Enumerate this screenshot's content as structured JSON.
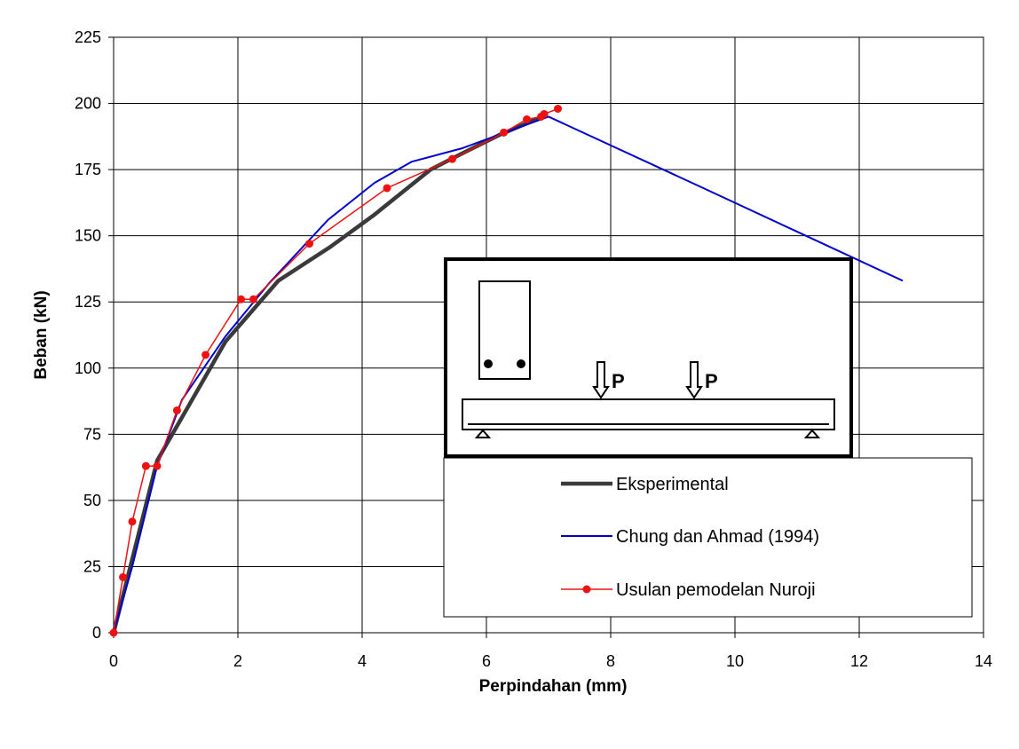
{
  "chart_data": {
    "type": "line",
    "xlabel": "Perpindahan (mm)",
    "ylabel": "Beban (kN)",
    "xlim": [
      0,
      14
    ],
    "ylim": [
      0,
      225
    ],
    "xticks": [
      0,
      2,
      4,
      6,
      8,
      10,
      12,
      14
    ],
    "yticks": [
      0,
      25,
      50,
      75,
      100,
      125,
      150,
      175,
      200,
      225
    ],
    "grid": true,
    "legend_position": "bottom-right",
    "series": [
      {
        "name": "Eksperimental",
        "color": "#3a3a3a",
        "marker": "none",
        "x": [
          0,
          0.7,
          1.8,
          2.65,
          3.5,
          4.2,
          5.1,
          5.6,
          6.2,
          6.9
        ],
        "y": [
          0,
          65,
          110,
          133,
          146,
          158,
          175,
          181,
          188,
          195
        ]
      },
      {
        "name": "Chung dan Ahmad (1994)",
        "color": "#0000cc",
        "marker": "none",
        "x": [
          0,
          0.3,
          0.7,
          1.1,
          1.8,
          2.5,
          3.45,
          4.2,
          4.8,
          5.6,
          6.3,
          7.0,
          9.4,
          12.7
        ],
        "y": [
          0,
          25,
          63,
          88,
          112,
          132,
          156,
          170,
          178,
          183,
          189,
          195,
          169,
          133
        ]
      },
      {
        "name": "Usulan pemodelan Nuroji",
        "color": "#ee1111",
        "marker": "circle",
        "x": [
          0,
          0.15,
          0.3,
          0.52,
          0.7,
          1.02,
          1.48,
          2.05,
          2.25,
          3.15,
          4.4,
          5.45,
          6.28,
          6.65,
          6.88,
          6.93,
          7.15
        ],
        "y": [
          0,
          21,
          42,
          63,
          63,
          84,
          105,
          126,
          126,
          147,
          168,
          179,
          189,
          194,
          195,
          196,
          198
        ]
      }
    ],
    "inset": {
      "load_label_1": "P",
      "load_label_2": "P"
    }
  }
}
